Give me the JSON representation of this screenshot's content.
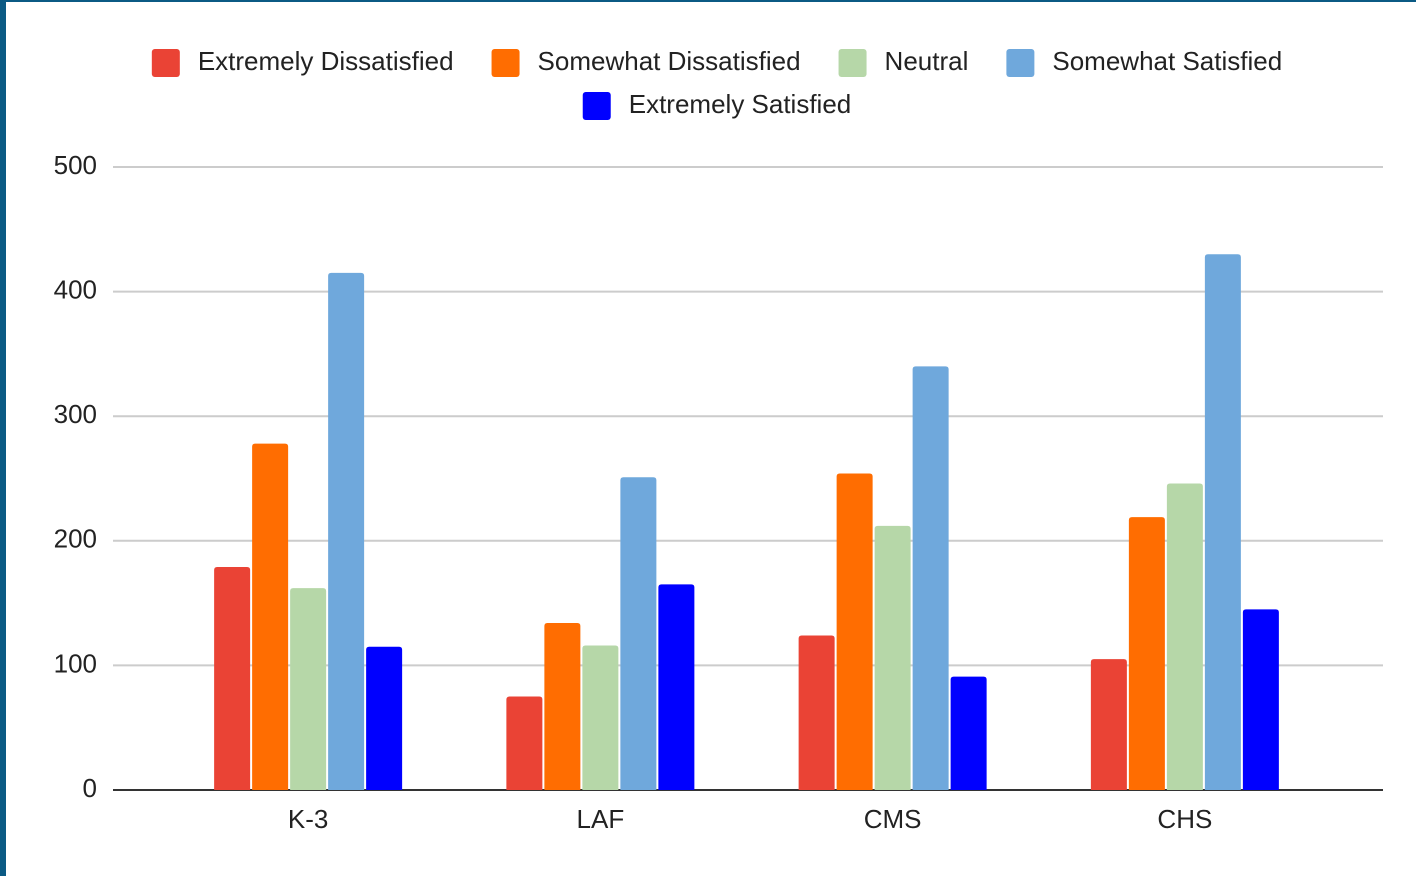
{
  "chart_data": {
    "type": "bar",
    "categories": [
      "K-3",
      "LAF",
      "CMS",
      "CHS"
    ],
    "series": [
      {
        "name": "Extremely Dissatisfied",
        "color": "#ea4335",
        "values": [
          179,
          75,
          124,
          105
        ]
      },
      {
        "name": "Somewhat Dissatisfied",
        "color": "#ff6d01",
        "values": [
          278,
          134,
          254,
          219
        ]
      },
      {
        "name": "Neutral",
        "color": "#b6d7a8",
        "values": [
          162,
          116,
          212,
          246
        ]
      },
      {
        "name": "Somewhat Satisfied",
        "color": "#6fa8dc",
        "values": [
          415,
          251,
          340,
          430
        ]
      },
      {
        "name": "Extremely Satisfied",
        "color": "#0000ff",
        "values": [
          115,
          165,
          91,
          145
        ]
      }
    ],
    "ylim": [
      0,
      500
    ],
    "yticks": [
      0,
      100,
      200,
      300,
      400,
      500
    ],
    "grid": true,
    "legend": "top"
  }
}
